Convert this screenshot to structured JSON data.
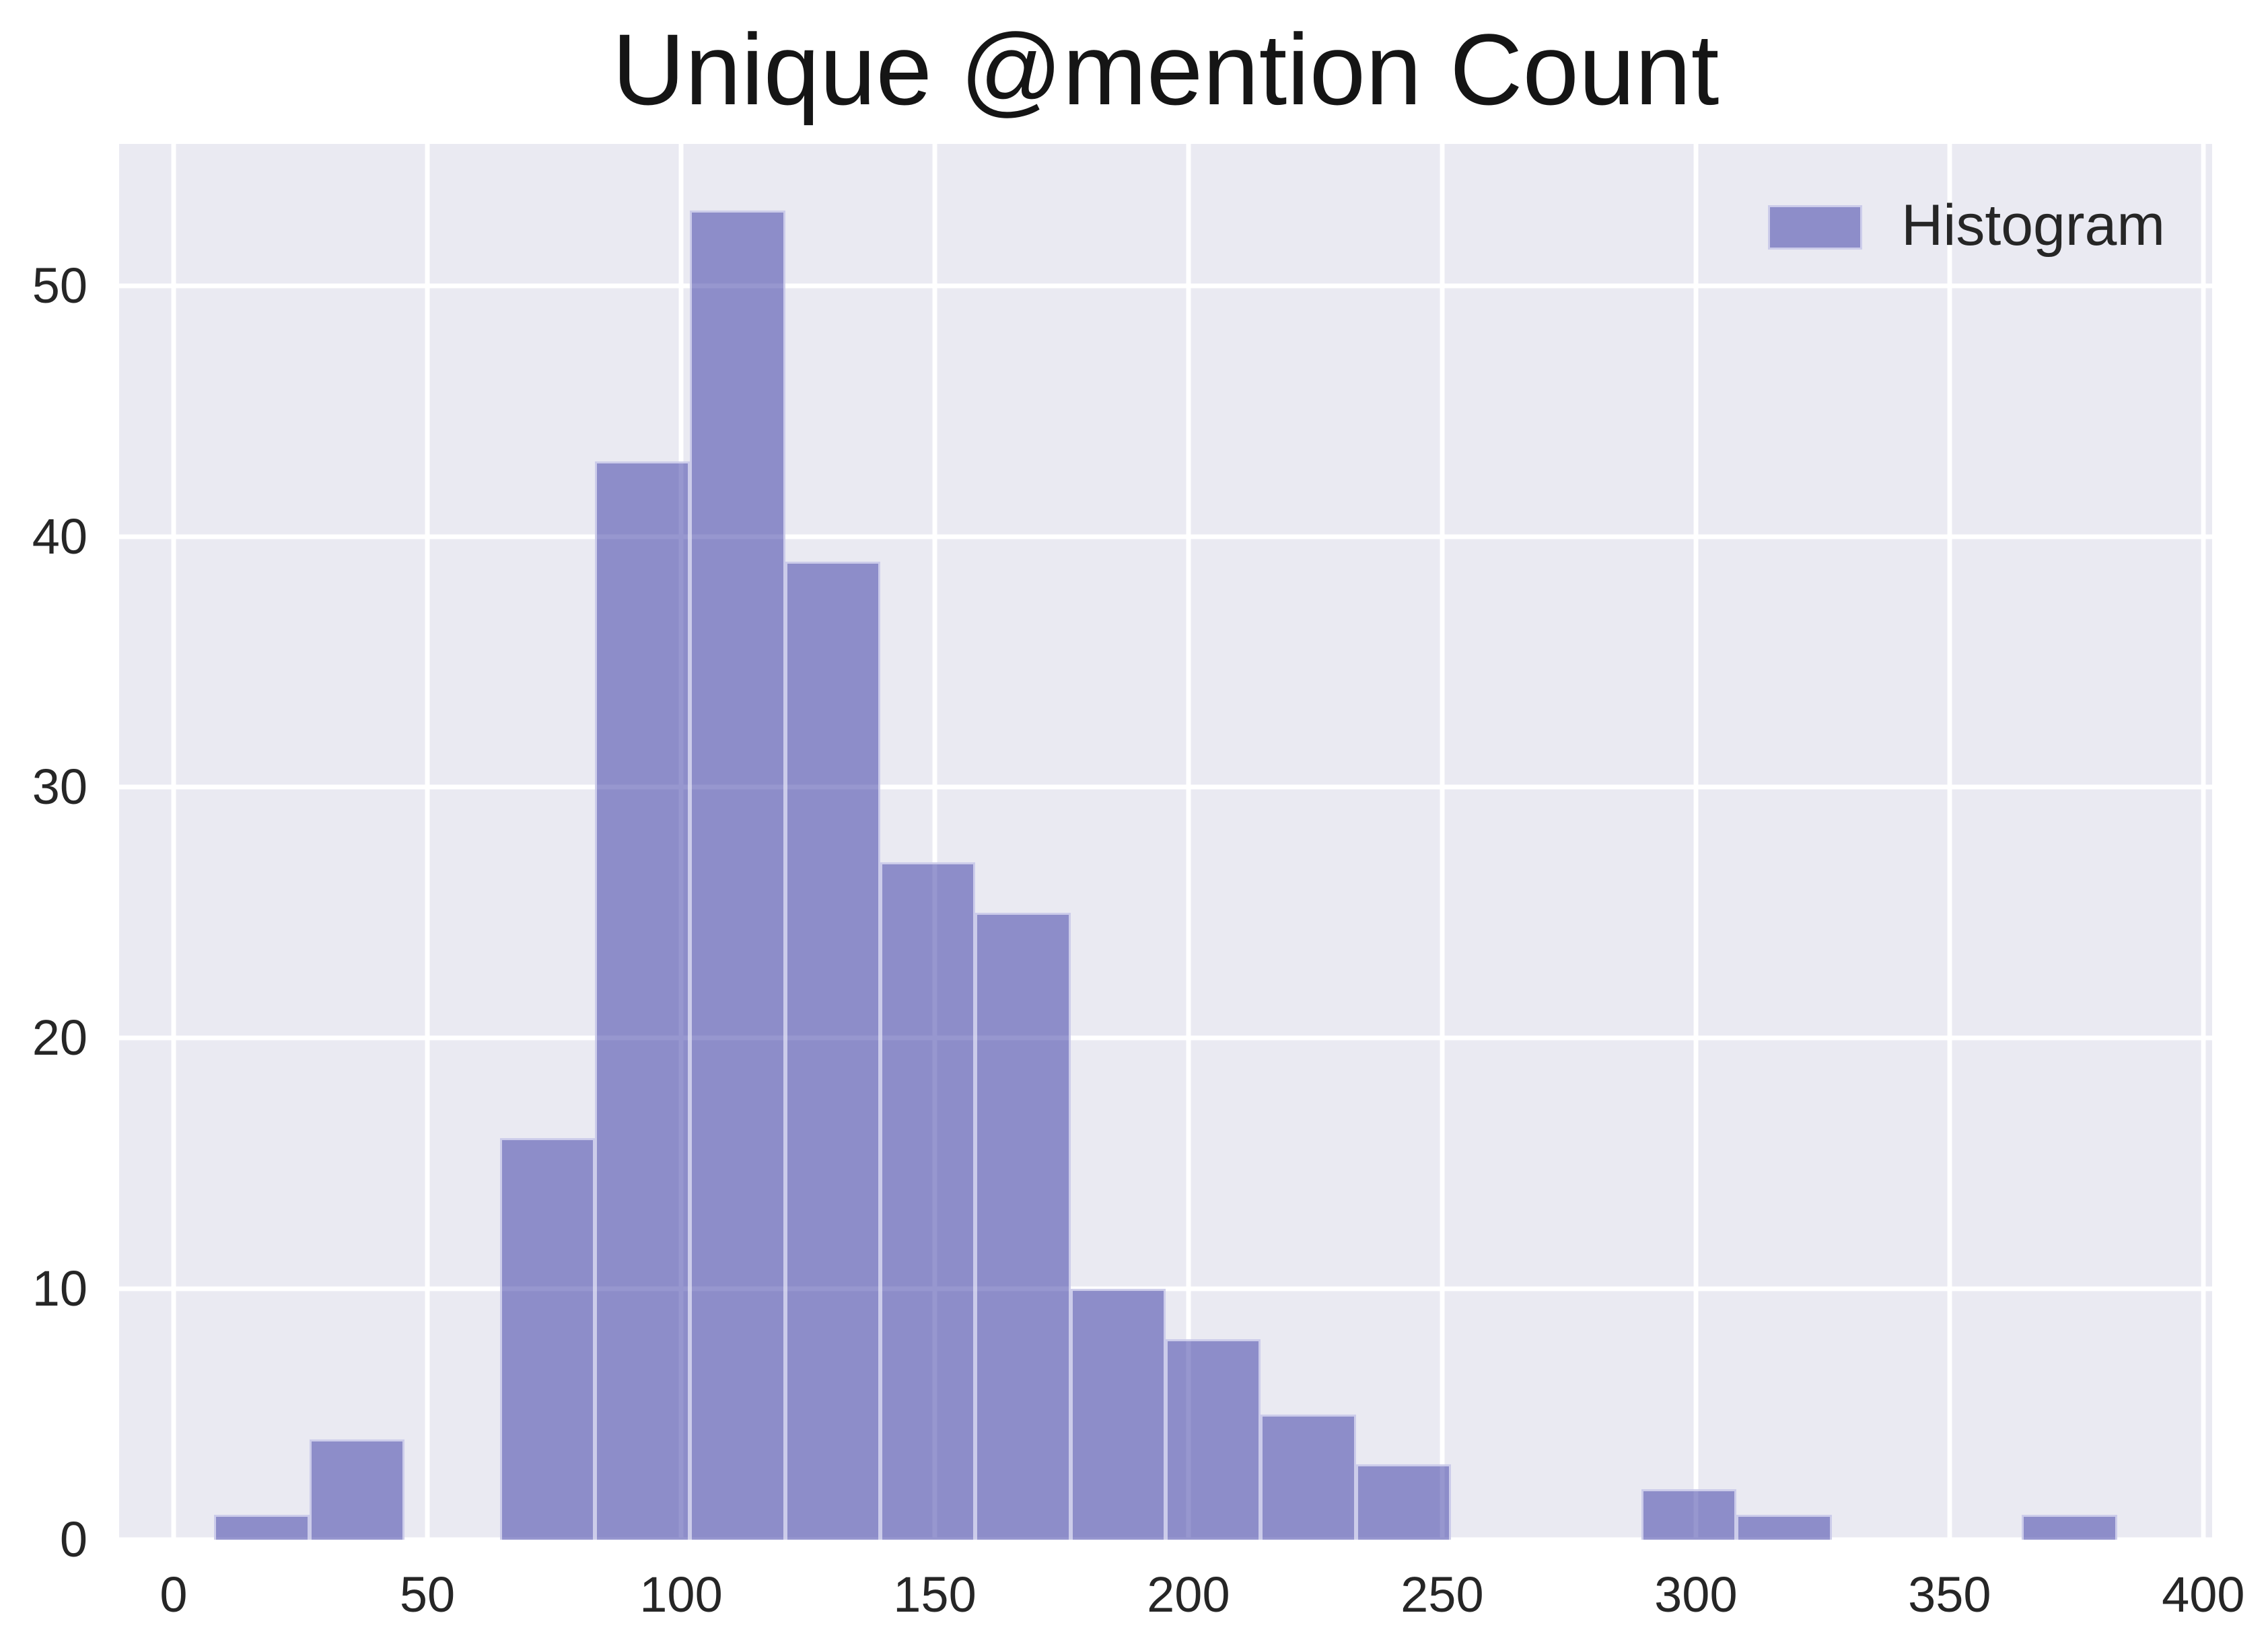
{
  "figure": {
    "background_color": "#ffffff",
    "axes_background_color": "#eaeaf2",
    "gridline_color": "#ffffff",
    "tick_text_color": "#262626",
    "bar_fill_color": "rgba(47,47,160,0.5)",
    "bar_rendered_color": "#8c8cc8",
    "bar_edge_color": "rgba(226,226,244,0.75)"
  },
  "legend": {
    "label": "Histogram",
    "swatch_color": "#8c8cc8",
    "position": "upper right"
  },
  "chart_data": {
    "type": "bar",
    "subtype": "histogram",
    "title": "Unique @mention Count",
    "xlabel": "",
    "ylabel": "",
    "bin_edges": [
      8,
      26.75,
      45.5,
      64.25,
      83,
      101.75,
      120.5,
      139.25,
      158,
      176.75,
      195.5,
      214.25,
      233,
      251.75,
      270.5,
      289.25,
      308,
      326.75,
      345.5,
      364.25,
      383
    ],
    "counts": [
      1,
      4,
      0,
      16,
      43,
      53,
      39,
      27,
      25,
      10,
      8,
      5,
      3,
      0,
      0,
      2,
      1,
      0,
      0,
      1
    ],
    "x_ticks": [
      0,
      50,
      100,
      150,
      200,
      250,
      300,
      350,
      400
    ],
    "y_ticks": [
      0,
      10,
      20,
      30,
      40,
      50
    ],
    "xlim": [
      -10.75,
      401.75
    ],
    "ylim": [
      0,
      55.65
    ],
    "grid": true,
    "legend_entries": [
      "Histogram"
    ],
    "legend_position": "upper right"
  }
}
